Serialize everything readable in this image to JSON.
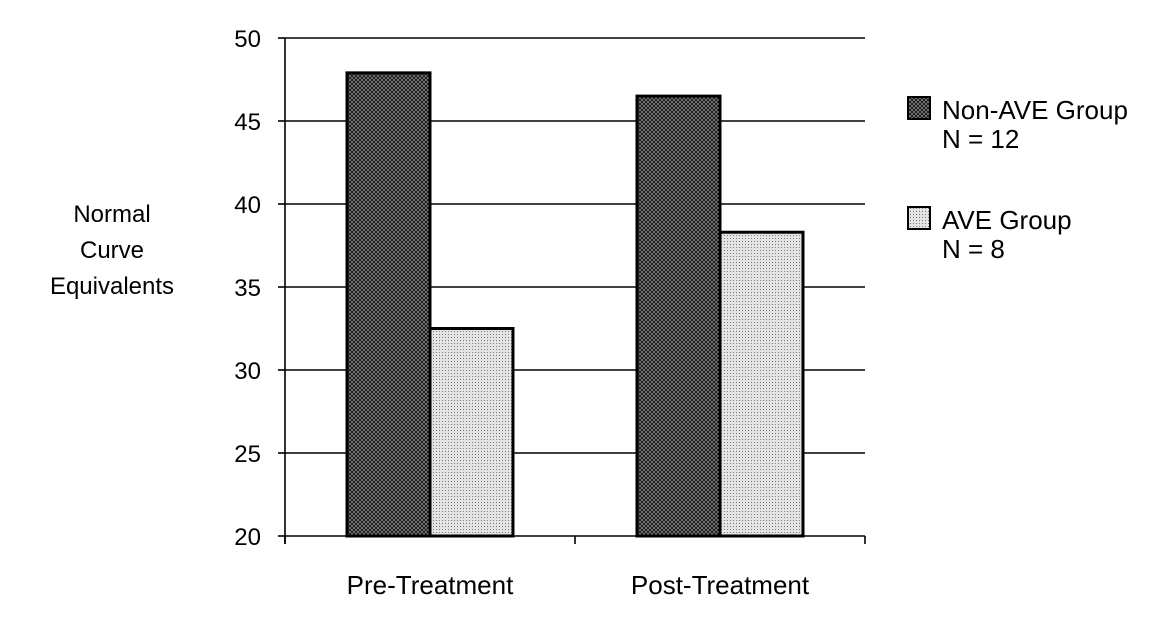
{
  "chart_data": {
    "type": "bar",
    "title": "",
    "xlabel": "",
    "ylabel_lines": [
      "Normal",
      "Curve",
      "Equivalents"
    ],
    "categories": [
      "Pre-Treatment",
      "Post-Treatment"
    ],
    "ylim": [
      20,
      50
    ],
    "yticks": [
      20,
      25,
      30,
      35,
      40,
      45,
      50
    ],
    "grid": true,
    "legend_position": "right",
    "series": [
      {
        "name": "Non-AVE Group",
        "sublabel": "N = 12",
        "values": [
          47.9,
          46.5
        ],
        "pattern": "dark-crosshatch"
      },
      {
        "name": "AVE Group",
        "sublabel": "N = 8",
        "values": [
          32.5,
          38.3
        ],
        "pattern": "light-dots"
      }
    ]
  }
}
